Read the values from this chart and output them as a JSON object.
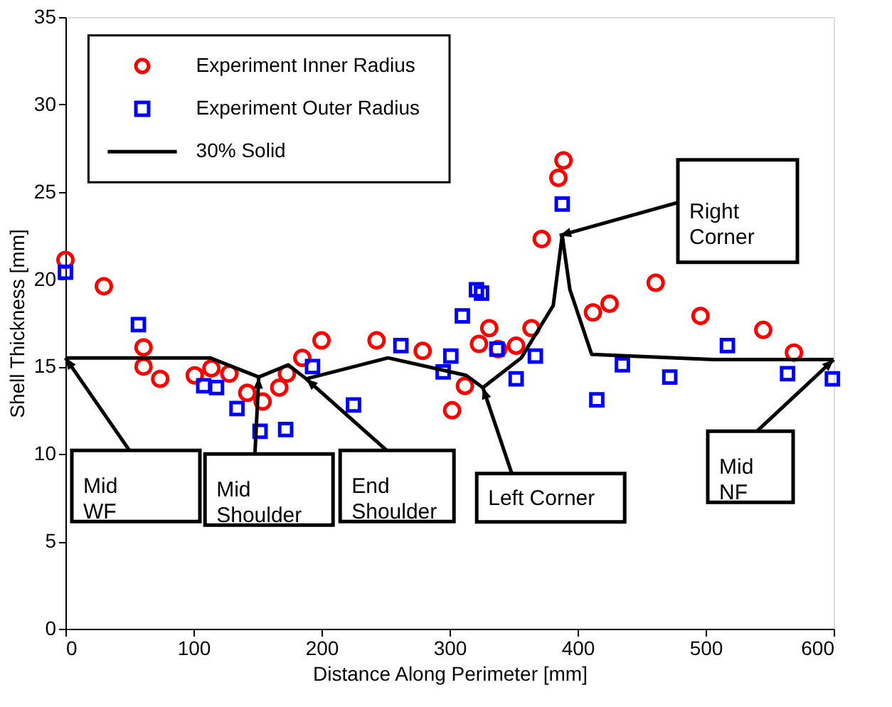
{
  "chart_data": {
    "type": "scatter",
    "xlabel": "Distance Along Perimeter [mm]",
    "ylabel": "Shell Thickness [mm]",
    "xlim": [
      0,
      600
    ],
    "ylim": [
      0,
      35
    ],
    "xticks": [
      0,
      100,
      200,
      300,
      400,
      500,
      600
    ],
    "yticks": [
      0,
      5,
      10,
      15,
      20,
      25,
      30,
      35
    ],
    "grid": false,
    "legend": "top left",
    "series": [
      {
        "name": "Experiment Inner Radius",
        "color": "#ff0000",
        "type": "scatter",
        "marker": "circle",
        "x": [
          0,
          30,
          61,
          61,
          74,
          101,
          114,
          128,
          142,
          154,
          167,
          173,
          185,
          200,
          243,
          279,
          302,
          312,
          323,
          331,
          338,
          352,
          364,
          372,
          385,
          389,
          412,
          425,
          461,
          496,
          545,
          569
        ],
        "values": [
          21.1,
          19.6,
          16.1,
          15.0,
          14.3,
          14.5,
          14.9,
          14.6,
          13.5,
          13.0,
          13.8,
          14.6,
          15.5,
          16.5,
          16.5,
          15.9,
          12.5,
          13.9,
          16.3,
          17.2,
          16.0,
          16.2,
          17.2,
          22.3,
          25.8,
          26.8,
          18.1,
          18.6,
          19.8,
          17.9,
          17.1,
          15.8
        ]
      },
      {
        "name": "Experiment Outer Radius",
        "color": "#0000ff",
        "type": "scatter",
        "marker": "square",
        "x": [
          0,
          57,
          108,
          118,
          134,
          152,
          172,
          193,
          225,
          262,
          295,
          301,
          310,
          321,
          325,
          337,
          352,
          367,
          388,
          415,
          435,
          472,
          517,
          564,
          599
        ],
        "values": [
          20.4,
          17.4,
          13.9,
          13.8,
          12.6,
          11.3,
          11.4,
          15.0,
          12.8,
          16.2,
          14.7,
          15.6,
          17.9,
          19.4,
          19.2,
          16.0,
          14.3,
          15.6,
          24.3,
          13.1,
          15.1,
          14.4,
          16.2,
          14.6,
          14.3
        ]
      },
      {
        "name": "30% Solid",
        "color": "#000000",
        "type": "line",
        "marker": "none",
        "line_style": "solid",
        "x": [
          0,
          113,
          151,
          174,
          188,
          252,
          313,
          326,
          356,
          381,
          388,
          394,
          411,
          506,
          600
        ],
        "values": [
          15.5,
          15.5,
          14.4,
          15.1,
          14.3,
          15.5,
          14.5,
          13.8,
          15.5,
          18.5,
          22.5,
          19.4,
          15.7,
          15.4,
          15.4
        ]
      }
    ],
    "annotations": [
      {
        "text": "Mid\nWF",
        "x": 0,
        "y": 15.5
      },
      {
        "text": "Mid\nShoulder",
        "x": 151,
        "y": 14.4
      },
      {
        "text": "End\nShoulder",
        "x": 188,
        "y": 14.3
      },
      {
        "text": "Left Corner",
        "x": 326,
        "y": 13.8
      },
      {
        "text": "Right\nCorner",
        "x": 386,
        "y": 22.5
      },
      {
        "text": "Mid\nNF",
        "x": 600,
        "y": 15.4
      }
    ]
  }
}
